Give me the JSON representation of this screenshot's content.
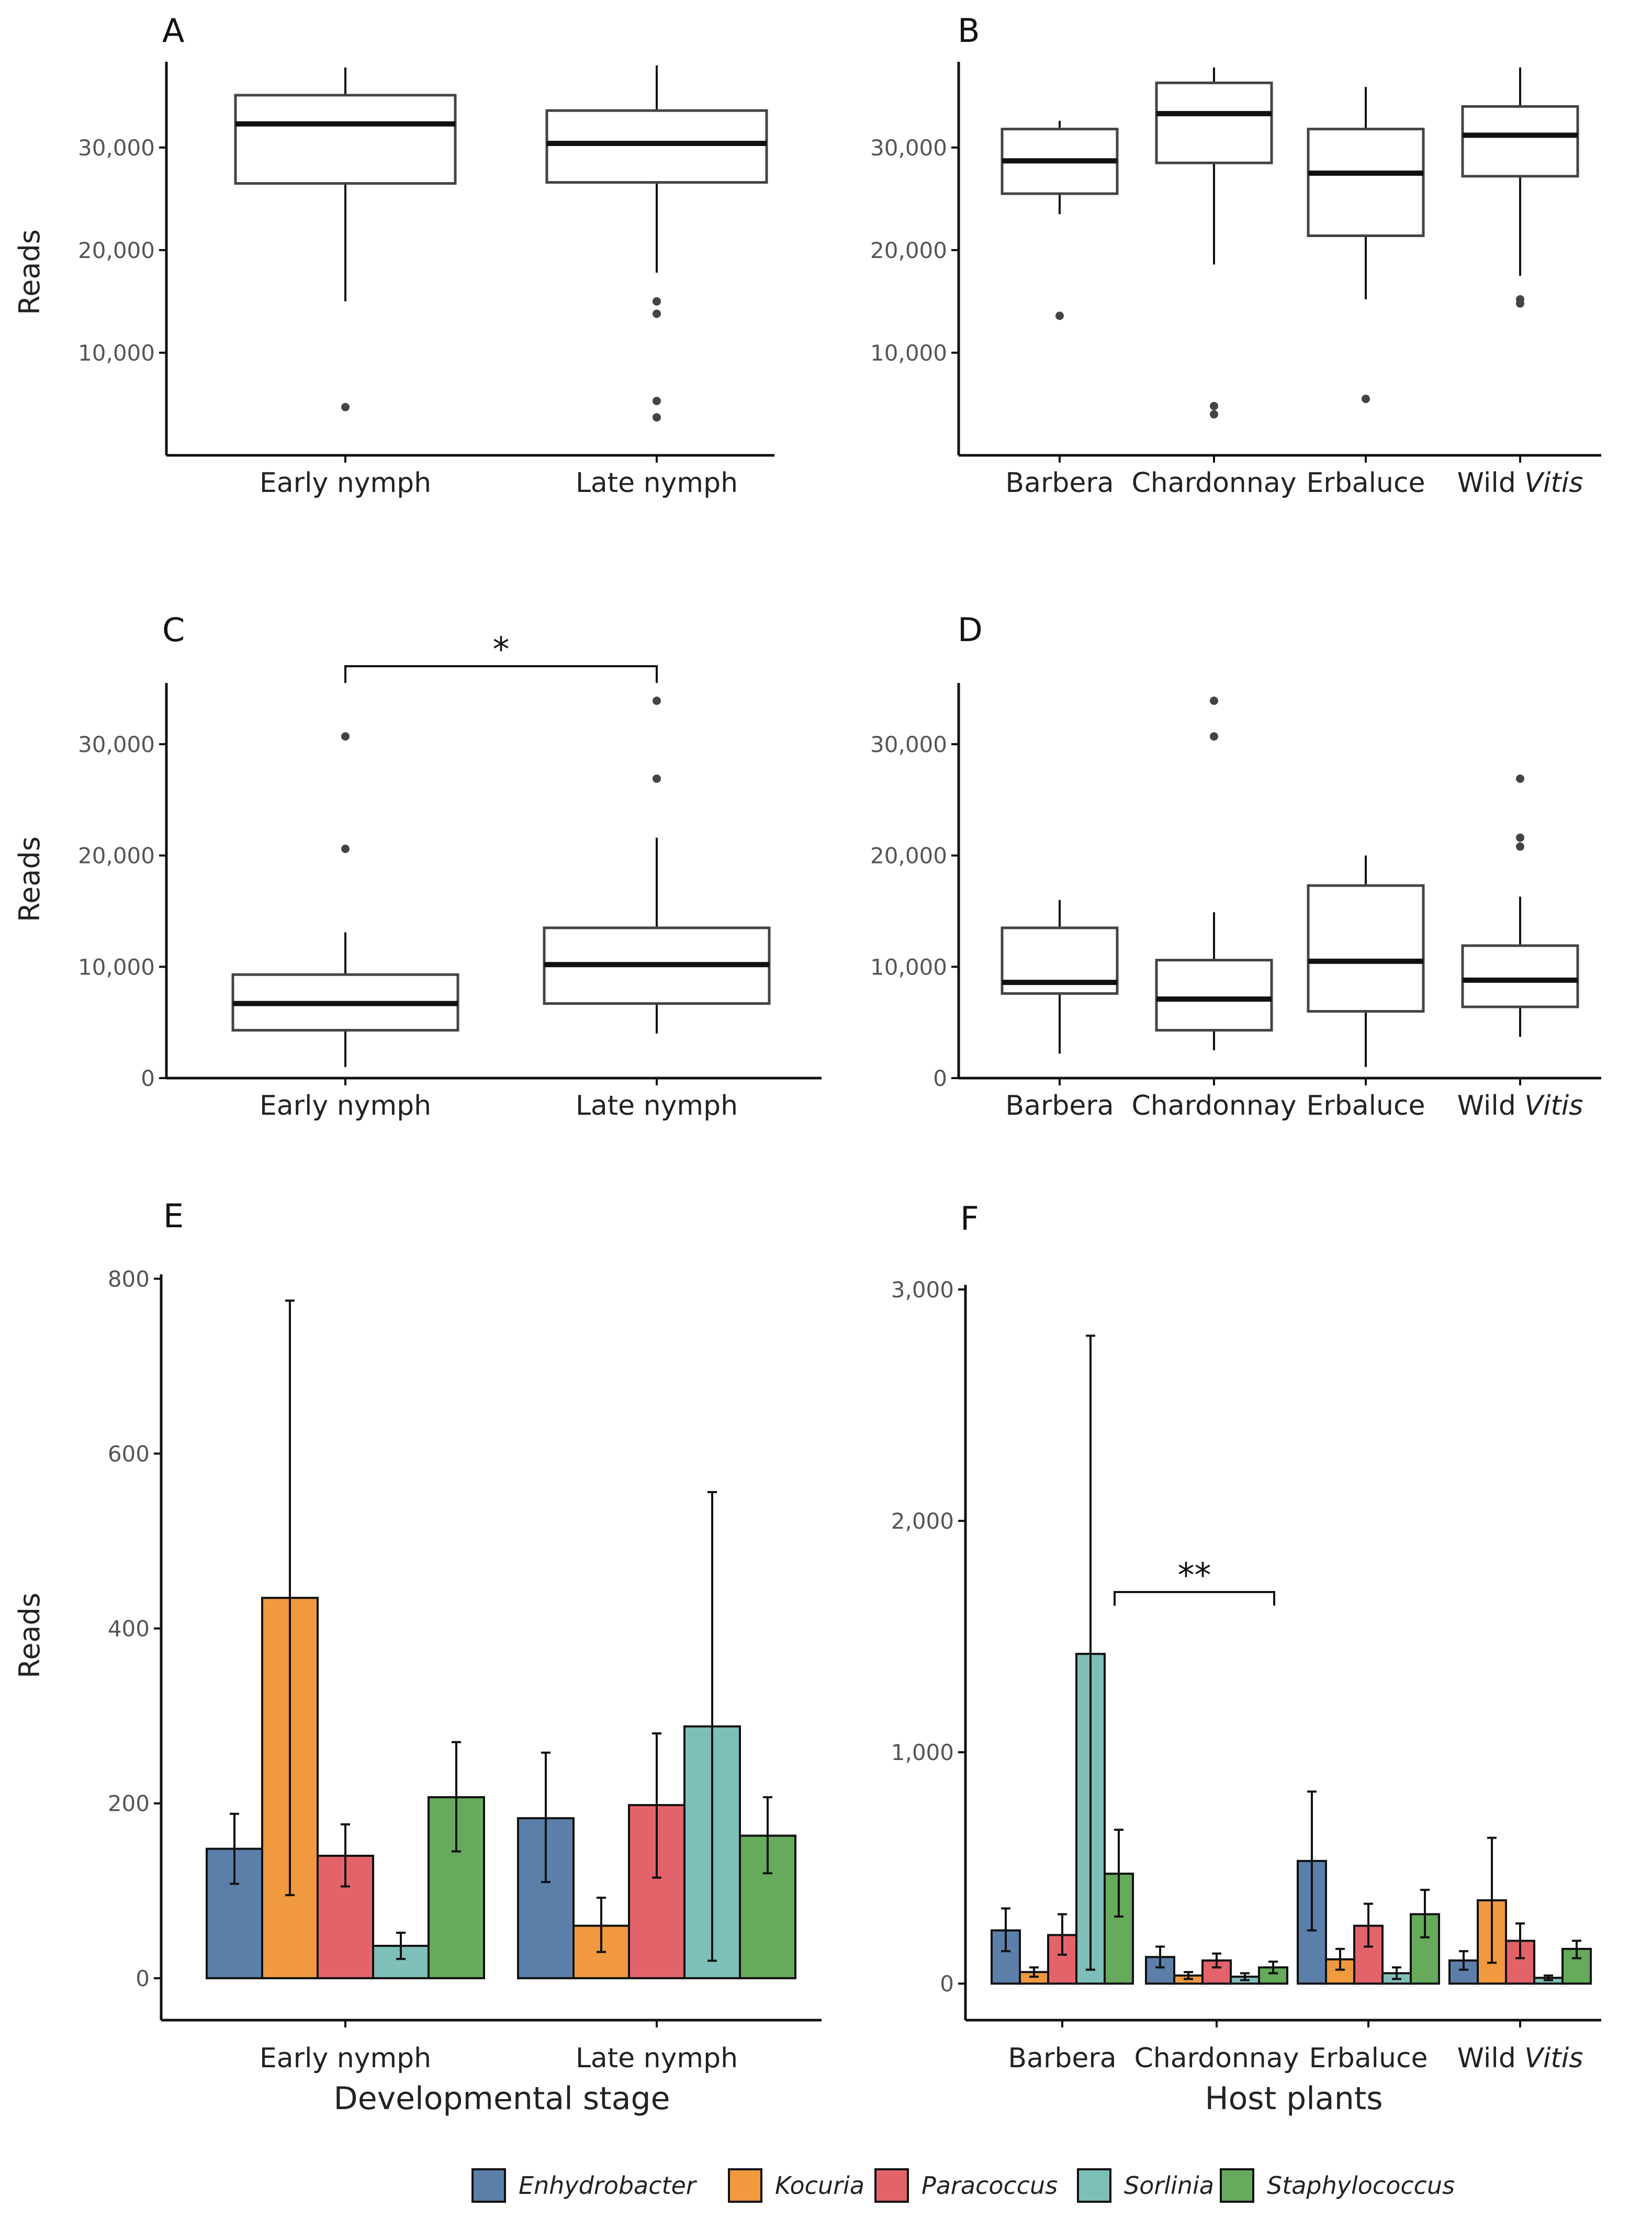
{
  "chart_data": [
    {
      "panel": "A",
      "type": "boxplot",
      "ylabel": "Reads",
      "xlabel": "",
      "ylim": [
        0,
        38000
      ],
      "yticks": [
        10000,
        20000,
        30000
      ],
      "yticklabels": [
        "10,000",
        "20,000",
        "30,000"
      ],
      "categories": [
        {
          "label": "Early nymph"
        },
        {
          "label": "Late nymph"
        }
      ],
      "boxes": [
        {
          "min": 15000,
          "q1": 26500,
          "median": 32300,
          "q3": 35100,
          "max": 37800,
          "outliers": [
            4700
          ]
        },
        {
          "min": 17800,
          "q1": 26600,
          "median": 30400,
          "q3": 33600,
          "max": 38000,
          "outliers": [
            15000,
            13800,
            5300,
            3700
          ]
        }
      ]
    },
    {
      "panel": "B",
      "type": "boxplot",
      "ylabel": "",
      "xlabel": "",
      "ylim": [
        0,
        38000
      ],
      "yticks": [
        10000,
        20000,
        30000
      ],
      "yticklabels": [
        "10,000",
        "20,000",
        "30,000"
      ],
      "categories": [
        {
          "label": "Barbera"
        },
        {
          "label": "Chardonnay"
        },
        {
          "label": "Erbaluce"
        },
        {
          "label": "Wild",
          "label_italic": "Vitis"
        }
      ],
      "boxes": [
        {
          "min": 23500,
          "q1": 25500,
          "median": 28700,
          "q3": 31800,
          "max": 32600,
          "outliers": [
            13600
          ]
        },
        {
          "min": 18600,
          "q1": 28500,
          "median": 33300,
          "q3": 36300,
          "max": 37800,
          "outliers": [
            4800,
            4000
          ]
        },
        {
          "min": 15200,
          "q1": 21400,
          "median": 27500,
          "q3": 31800,
          "max": 35900,
          "outliers": [
            5500
          ]
        },
        {
          "min": 17500,
          "q1": 27200,
          "median": 31200,
          "q3": 34000,
          "max": 37800,
          "outliers": [
            15200,
            14800
          ]
        }
      ]
    },
    {
      "panel": "C",
      "type": "boxplot",
      "ylabel": "Reads",
      "xlabel": "",
      "ylim": [
        0,
        35500
      ],
      "yticks": [
        0,
        10000,
        20000,
        30000
      ],
      "yticklabels": [
        "0",
        "10,000",
        "20,000",
        "30,000"
      ],
      "categories": [
        {
          "label": "Early nymph"
        },
        {
          "label": "Late nymph"
        }
      ],
      "boxes": [
        {
          "min": 1000,
          "q1": 4300,
          "median": 6700,
          "q3": 9300,
          "max": 13100,
          "outliers": [
            30700,
            20600
          ]
        },
        {
          "min": 4000,
          "q1": 6700,
          "median": 10200,
          "q3": 13500,
          "max": 21600,
          "outliers": [
            33900,
            26900
          ]
        }
      ],
      "significance": {
        "from": 0,
        "to": 1,
        "label": "*"
      }
    },
    {
      "panel": "D",
      "type": "boxplot",
      "ylabel": "",
      "xlabel": "",
      "ylim": [
        0,
        35500
      ],
      "yticks": [
        0,
        10000,
        20000,
        30000
      ],
      "yticklabels": [
        "0",
        "10,000",
        "20,000",
        "30,000"
      ],
      "categories": [
        {
          "label": "Barbera"
        },
        {
          "label": "Chardonnay"
        },
        {
          "label": "Erbaluce"
        },
        {
          "label": "Wild",
          "label_italic": "Vitis"
        }
      ],
      "boxes": [
        {
          "min": 2200,
          "q1": 7600,
          "median": 8600,
          "q3": 13500,
          "max": 16000,
          "outliers": []
        },
        {
          "min": 2500,
          "q1": 4300,
          "median": 7100,
          "q3": 10600,
          "max": 14900,
          "outliers": [
            33900,
            30700
          ]
        },
        {
          "min": 1000,
          "q1": 6000,
          "median": 10500,
          "q3": 17300,
          "max": 20000,
          "outliers": []
        },
        {
          "min": 3700,
          "q1": 6400,
          "median": 8800,
          "q3": 11900,
          "max": 16300,
          "outliers": [
            26900,
            21600,
            20800
          ]
        }
      ]
    },
    {
      "panel": "E",
      "type": "bar",
      "ylabel": "Reads",
      "xlabel": "Developmental stage",
      "ylim": [
        -30,
        805
      ],
      "yticks": [
        0,
        200,
        400,
        600,
        800
      ],
      "yticklabels": [
        "0",
        "200",
        "400",
        "600",
        "800"
      ],
      "categories": [
        {
          "label": "Early nymph"
        },
        {
          "label": "Late nymph"
        }
      ],
      "series": [
        {
          "name": "Enhydrobacter",
          "values": [
            148,
            183
          ],
          "err_low": [
            108,
            110
          ],
          "err_high": [
            188,
            258
          ]
        },
        {
          "name": "Kocuria",
          "values": [
            435,
            60
          ],
          "err_low": [
            95,
            30
          ],
          "err_high": [
            775,
            92
          ]
        },
        {
          "name": "Paracoccus",
          "values": [
            140,
            198
          ],
          "err_low": [
            105,
            115
          ],
          "err_high": [
            176,
            280
          ]
        },
        {
          "name": "Sorlinia",
          "values": [
            37,
            288
          ],
          "err_low": [
            22,
            20
          ],
          "err_high": [
            52,
            556
          ]
        },
        {
          "name": "Staphylococcus",
          "values": [
            207,
            163
          ],
          "err_low": [
            145,
            120
          ],
          "err_high": [
            270,
            207
          ]
        }
      ]
    },
    {
      "panel": "F",
      "type": "bar",
      "ylabel": "",
      "xlabel": "Host plants",
      "ylim": [
        -90,
        3020
      ],
      "yticks": [
        0,
        1000,
        2000,
        3000
      ],
      "yticklabels": [
        "0",
        "1,000",
        "2,000",
        "3,000"
      ],
      "categories": [
        {
          "label": "Barbera"
        },
        {
          "label": "Chardonnay"
        },
        {
          "label": "Erbaluce"
        },
        {
          "label": "Wild",
          "label_italic": "Vitis"
        }
      ],
      "series": [
        {
          "name": "Enhydrobacter",
          "values": [
            230,
            115,
            530,
            100
          ],
          "err_low": [
            140,
            70,
            230,
            60
          ],
          "err_high": [
            325,
            160,
            830,
            140
          ]
        },
        {
          "name": "Kocuria",
          "values": [
            50,
            35,
            105,
            360
          ],
          "err_low": [
            30,
            20,
            60,
            90
          ],
          "err_high": [
            70,
            50,
            150,
            630
          ]
        },
        {
          "name": "Paracoccus",
          "values": [
            210,
            100,
            250,
            185
          ],
          "err_low": [
            125,
            70,
            160,
            110
          ],
          "err_high": [
            300,
            130,
            345,
            260
          ]
        },
        {
          "name": "Sorlinia",
          "values": [
            1425,
            30,
            45,
            25
          ],
          "err_low": [
            60,
            15,
            20,
            15
          ],
          "err_high": [
            2800,
            45,
            70,
            35
          ]
        },
        {
          "name": "Staphylococcus",
          "values": [
            475,
            70,
            300,
            150
          ],
          "err_low": [
            290,
            45,
            200,
            110
          ],
          "err_high": [
            665,
            95,
            405,
            185
          ]
        }
      ],
      "significance": {
        "from": 0,
        "to": 1,
        "label": "**"
      }
    }
  ],
  "legend": {
    "items": [
      {
        "name": "Enhydrobacter",
        "color": "#5b7fa8"
      },
      {
        "name": "Kocuria",
        "color": "#f0993f"
      },
      {
        "name": "Paracoccus",
        "color": "#e2646a"
      },
      {
        "name": "Sorlinia",
        "color": "#7fbfb9"
      },
      {
        "name": "Staphylococcus",
        "color": "#66aa5c"
      }
    ]
  },
  "colors": {
    "axis": "#111111",
    "box": "#444444",
    "tick": "#555555"
  }
}
